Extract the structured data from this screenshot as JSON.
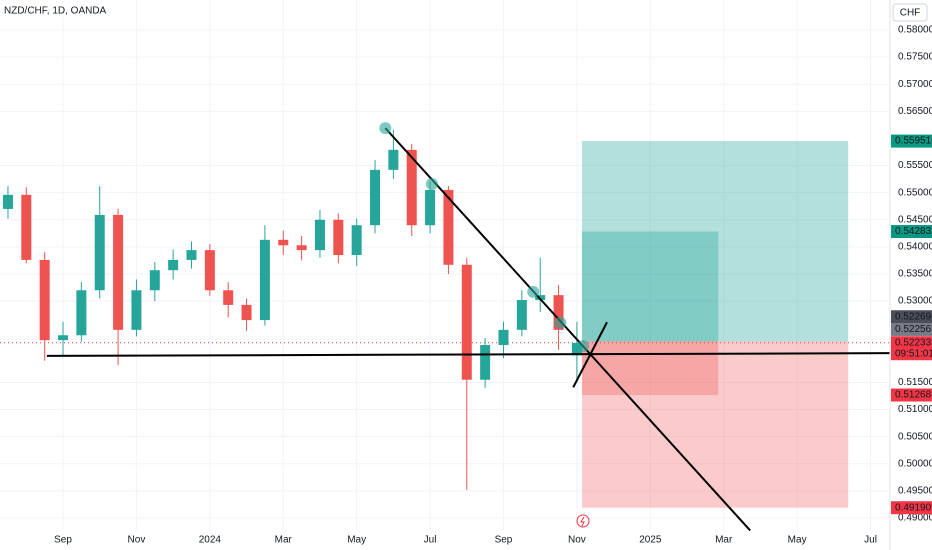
{
  "chart_data": {
    "type": "candlestick",
    "title": "NZD/CHF, 1D, OANDA",
    "currency": "CHF",
    "up_color": "#26a69a",
    "down_color": "#ef5350",
    "grid": true,
    "xlim": [
      -1.717,
      22.53
    ],
    "ylim": [
      0.4841,
      0.58553
    ],
    "xticks": [
      {
        "value": 0,
        "label": "Sep"
      },
      {
        "value": 2,
        "label": "Nov"
      },
      {
        "value": 4,
        "label": "2024"
      },
      {
        "value": 6,
        "label": "Mar"
      },
      {
        "value": 8,
        "label": "May"
      },
      {
        "value": 10,
        "label": "Jul"
      },
      {
        "value": 12,
        "label": "Sep"
      },
      {
        "value": 14,
        "label": "Nov"
      },
      {
        "value": 16,
        "label": "2025"
      },
      {
        "value": 18,
        "label": "Mar"
      },
      {
        "value": 20,
        "label": "May"
      },
      {
        "value": 22,
        "label": "Jul"
      }
    ],
    "yticks": [
      {
        "value": 0.58,
        "label": "0.58000"
      },
      {
        "value": 0.575,
        "label": "0.57500"
      },
      {
        "value": 0.57,
        "label": "0.57000"
      },
      {
        "value": 0.565,
        "label": "0.56500"
      },
      {
        "value": 0.555,
        "label": "0.55500"
      },
      {
        "value": 0.55,
        "label": "0.55000"
      },
      {
        "value": 0.545,
        "label": "0.54500"
      },
      {
        "value": 0.54,
        "label": "0.54000"
      },
      {
        "value": 0.535,
        "label": "0.53500"
      },
      {
        "value": 0.53,
        "label": "0.53000"
      },
      {
        "value": 0.515,
        "label": "0.51500"
      },
      {
        "value": 0.51,
        "label": "0.51000"
      },
      {
        "value": 0.505,
        "label": "0.50500"
      },
      {
        "value": 0.5,
        "label": "0.50000"
      },
      {
        "value": 0.495,
        "label": "0.49500"
      },
      {
        "value": 0.49,
        "label": "0.49000"
      }
    ],
    "x": [
      -1.5,
      -1,
      -0.5,
      0,
      0.5,
      1,
      1.5,
      2,
      2.5,
      3,
      3.5,
      4,
      4.5,
      5,
      5.5,
      6,
      6.5,
      7,
      7.5,
      8,
      8.5,
      9,
      9.5,
      10,
      10.5,
      11,
      11.5,
      12,
      12.5,
      13,
      13.5,
      14
    ],
    "open": [
      0.547,
      0.5496,
      0.5376,
      0.5228,
      0.5237,
      0.532,
      0.5459,
      0.5247,
      0.532,
      0.5357,
      0.5376,
      0.5394,
      0.532,
      0.5293,
      0.5265,
      0.5413,
      0.5403,
      0.5394,
      0.545,
      0.5385,
      0.544,
      0.5542,
      0.5579,
      0.544,
      0.5505,
      0.5367,
      0.5155,
      0.5219,
      0.5247,
      0.5302,
      0.5311,
      0.52
    ],
    "high": [
      0.5512,
      0.551,
      0.539,
      0.5262,
      0.5335,
      0.5512,
      0.547,
      0.534,
      0.5372,
      0.5395,
      0.541,
      0.5405,
      0.5335,
      0.5305,
      0.544,
      0.543,
      0.542,
      0.5468,
      0.5462,
      0.5452,
      0.556,
      0.5616,
      0.559,
      0.552,
      0.5512,
      0.538,
      0.5232,
      0.5262,
      0.532,
      0.538,
      0.533,
      0.5262
    ],
    "low": [
      0.5452,
      0.537,
      0.519,
      0.52,
      0.5225,
      0.5305,
      0.5182,
      0.5235,
      0.53,
      0.534,
      0.536,
      0.531,
      0.527,
      0.5245,
      0.5255,
      0.5385,
      0.5375,
      0.538,
      0.537,
      0.5365,
      0.5425,
      0.5525,
      0.542,
      0.5425,
      0.535,
      0.4952,
      0.514,
      0.5195,
      0.5235,
      0.528,
      0.521,
      0.515
    ],
    "close": [
      0.5496,
      0.5376,
      0.5228,
      0.5237,
      0.532,
      0.5459,
      0.5247,
      0.532,
      0.5357,
      0.5376,
      0.5394,
      0.532,
      0.5293,
      0.5265,
      0.5413,
      0.5403,
      0.5394,
      0.545,
      0.5385,
      0.544,
      0.5542,
      0.5579,
      0.544,
      0.5505,
      0.5367,
      0.5155,
      0.5219,
      0.5247,
      0.5302,
      0.5311,
      0.5247,
      0.5223
    ],
    "positions": [
      {
        "x": [
          14.14,
          21.39
        ],
        "entry": 0.52256,
        "target": 0.55951,
        "stop": {
          "value": 0.4919,
          "label": "0.49190"
        }
      },
      {
        "x": [
          14.14,
          17.85
        ],
        "entry": 0.52256,
        "target": 0.54283,
        "stop": 0.51268
      }
    ],
    "last_tags": [
      0.52269,
      0.52256
    ],
    "current": {
      "value": 0.52233,
      "countdown": "09:51:01"
    },
    "drawings": [
      {
        "x": [
          8.78,
          18.72
        ],
        "y": [
          0.5619,
          0.4877
        ]
      },
      {
        "x": [
          -0.44,
          22.53
        ],
        "y": [
          0.5199,
          0.5204
        ]
      },
      {
        "x": [
          13.9,
          14.82
        ],
        "y": [
          0.5141,
          0.5261
        ]
      }
    ],
    "markers": {
      "x": [
        8.78,
        10.05,
        12.81,
        13.55,
        14.17
      ],
      "y": [
        0.5619,
        0.5516,
        0.5317,
        0.526,
        0.5217
      ]
    }
  }
}
